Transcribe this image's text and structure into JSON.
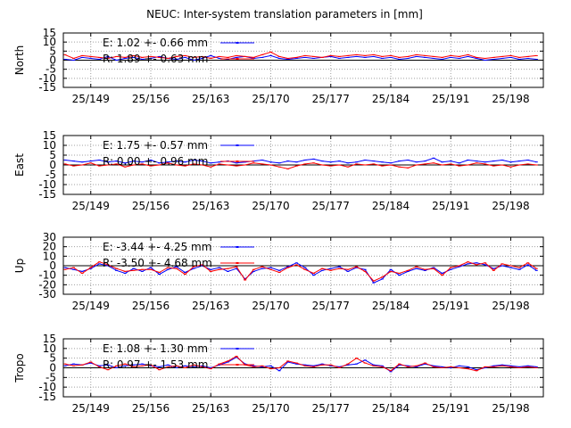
{
  "chart_data": {
    "type": "line",
    "title": "NEUC: Inter-system translation parameters in [mm]",
    "x_tick_labels": [
      "25/149",
      "25/156",
      "25/163",
      "25/170",
      "25/177",
      "25/184",
      "25/191",
      "25/198"
    ],
    "x_tick_days": [
      149,
      156,
      163,
      170,
      177,
      184,
      191,
      198
    ],
    "xlim": [
      145.8,
      201.8
    ],
    "colors": {
      "E": "#0000ff",
      "R": "#ff0000",
      "zero": "#000000",
      "grid": "#a0a0a0"
    },
    "panels": [
      {
        "ylabel": "North",
        "ylim": [
          -15,
          15
        ],
        "yticks": [
          -15,
          -10,
          -5,
          0,
          5,
          10,
          15
        ],
        "series": [
          {
            "name": "E",
            "legend": "E:   1.02 +- 0.66 mm",
            "x": [
              146,
              147,
              148,
              149,
              150,
              151,
              152,
              153,
              154,
              155,
              156,
              157,
              158,
              159,
              160,
              161,
              162,
              163,
              164,
              165,
              166,
              167,
              168,
              169,
              170,
              171,
              172,
              173,
              174,
              175,
              176,
              177,
              178,
              179,
              180,
              181,
              182,
              183,
              184,
              185,
              186,
              187,
              188,
              189,
              190,
              191,
              192,
              193,
              194,
              195,
              196,
              197,
              198,
              199,
              200,
              201
            ],
            "values": [
              0.5,
              0.0,
              1.5,
              1.0,
              0.5,
              2.0,
              0.0,
              1.0,
              1.5,
              0.5,
              1.0,
              2.0,
              1.0,
              0.5,
              1.5,
              0.0,
              1.0,
              2.5,
              1.0,
              0.5,
              1.5,
              2.0,
              1.0,
              1.5,
              2.5,
              1.0,
              0.5,
              1.0,
              1.5,
              1.0,
              1.5,
              2.0,
              1.0,
              1.5,
              2.0,
              1.5,
              2.0,
              1.0,
              1.5,
              0.5,
              1.0,
              2.0,
              1.5,
              1.0,
              0.5,
              1.5,
              1.0,
              2.0,
              1.0,
              0.0,
              0.5,
              1.0,
              1.5,
              0.5,
              1.0,
              0.5
            ]
          },
          {
            "name": "R",
            "legend": "R:   1.89 +- 0.63 mm",
            "x": [
              146,
              147,
              148,
              149,
              150,
              151,
              152,
              153,
              154,
              155,
              156,
              157,
              158,
              159,
              160,
              161,
              162,
              163,
              164,
              165,
              166,
              167,
              168,
              169,
              170,
              171,
              172,
              173,
              174,
              175,
              176,
              177,
              178,
              179,
              180,
              181,
              182,
              183,
              184,
              185,
              186,
              187,
              188,
              189,
              190,
              191,
              192,
              193,
              194,
              195,
              196,
              197,
              198,
              199,
              200,
              201
            ],
            "values": [
              3.0,
              1.0,
              2.5,
              2.0,
              1.5,
              1.0,
              2.0,
              1.5,
              2.5,
              1.5,
              2.0,
              1.5,
              1.0,
              2.0,
              2.5,
              1.5,
              2.0,
              1.0,
              2.0,
              1.5,
              2.5,
              2.0,
              1.5,
              3.0,
              4.5,
              2.0,
              1.0,
              1.5,
              2.5,
              2.0,
              1.5,
              2.5,
              2.0,
              2.5,
              3.0,
              2.5,
              3.0,
              2.0,
              2.5,
              1.5,
              2.0,
              3.0,
              2.5,
              2.0,
              1.5,
              2.5,
              2.0,
              3.0,
              1.5,
              1.0,
              1.5,
              2.0,
              2.5,
              1.5,
              2.0,
              2.5
            ]
          }
        ]
      },
      {
        "ylabel": "East",
        "ylim": [
          -15,
          15
        ],
        "yticks": [
          -15,
          -10,
          -5,
          0,
          5,
          10,
          15
        ],
        "series": [
          {
            "name": "E",
            "legend": "E:   1.75 +- 0.57 mm",
            "x": [
              146,
              147,
              148,
              149,
              150,
              151,
              152,
              153,
              154,
              155,
              156,
              157,
              158,
              159,
              160,
              161,
              162,
              163,
              164,
              165,
              166,
              167,
              168,
              169,
              170,
              171,
              172,
              173,
              174,
              175,
              176,
              177,
              178,
              179,
              180,
              181,
              182,
              183,
              184,
              185,
              186,
              187,
              188,
              189,
              190,
              191,
              192,
              193,
              194,
              195,
              196,
              197,
              198,
              199,
              200,
              201
            ],
            "values": [
              2.5,
              2.0,
              1.5,
              2.0,
              2.5,
              1.5,
              2.0,
              1.0,
              2.0,
              1.5,
              2.5,
              1.0,
              1.5,
              2.0,
              1.5,
              2.5,
              2.0,
              1.0,
              1.5,
              2.0,
              1.0,
              1.5,
              2.0,
              2.5,
              1.5,
              1.0,
              2.0,
              1.5,
              2.5,
              3.0,
              2.0,
              1.5,
              2.0,
              1.0,
              1.5,
              2.5,
              2.0,
              1.5,
              1.0,
              2.0,
              2.5,
              1.5,
              2.0,
              3.5,
              1.5,
              2.0,
              1.0,
              2.5,
              2.0,
              1.5,
              2.0,
              2.5,
              1.5,
              2.0,
              2.5,
              1.5
            ]
          },
          {
            "name": "R",
            "legend": "R:   0.00 +- 0.96 mm",
            "x": [
              146,
              147,
              148,
              149,
              150,
              151,
              152,
              153,
              154,
              155,
              156,
              157,
              158,
              159,
              160,
              161,
              162,
              163,
              164,
              165,
              166,
              167,
              168,
              169,
              170,
              171,
              172,
              173,
              174,
              175,
              176,
              177,
              178,
              179,
              180,
              181,
              182,
              183,
              184,
              185,
              186,
              187,
              188,
              189,
              190,
              191,
              192,
              193,
              194,
              195,
              196,
              197,
              198,
              199,
              200,
              201
            ],
            "values": [
              0.5,
              -0.5,
              0.0,
              1.0,
              -0.5,
              0.0,
              0.5,
              -1.0,
              0.0,
              0.5,
              -0.5,
              0.0,
              1.0,
              0.0,
              -0.5,
              0.5,
              0.0,
              -1.0,
              0.5,
              0.0,
              -0.5,
              0.0,
              1.0,
              0.5,
              0.0,
              -1.0,
              -2.0,
              -0.5,
              0.5,
              1.0,
              0.0,
              -0.5,
              0.0,
              -1.0,
              0.5,
              0.0,
              0.5,
              -0.5,
              0.0,
              -1.0,
              -1.5,
              0.0,
              0.5,
              1.0,
              0.0,
              0.5,
              -0.5,
              0.0,
              1.0,
              0.5,
              -0.5,
              0.0,
              -1.0,
              0.0,
              0.5,
              0.0
            ]
          }
        ]
      },
      {
        "ylabel": "Up",
        "ylim": [
          -30,
          30
        ],
        "yticks": [
          -30,
          -20,
          -10,
          0,
          10,
          20,
          30
        ],
        "series": [
          {
            "name": "E",
            "legend": "E:  -3.44 +- 4.25 mm",
            "x": [
              146,
              147,
              148,
              149,
              150,
              151,
              152,
              153,
              154,
              155,
              156,
              157,
              158,
              159,
              160,
              161,
              162,
              163,
              164,
              165,
              166,
              167,
              168,
              169,
              170,
              171,
              172,
              173,
              174,
              175,
              176,
              177,
              178,
              179,
              180,
              181,
              182,
              183,
              184,
              185,
              186,
              187,
              188,
              189,
              190,
              191,
              192,
              193,
              194,
              195,
              196,
              197,
              198,
              199,
              200,
              201
            ],
            "values": [
              -2,
              -4,
              -6,
              -3,
              2,
              0,
              -5,
              -8,
              -3,
              -6,
              -2,
              -9,
              -4,
              -1,
              -7,
              -3,
              0,
              -4,
              -2,
              -6,
              -3,
              -14,
              -6,
              -3,
              -2,
              -5,
              -1,
              3,
              -2,
              -10,
              -5,
              -3,
              -1,
              -6,
              -2,
              -4,
              -18,
              -14,
              -4,
              -10,
              -6,
              -3,
              -5,
              -2,
              -8,
              -4,
              -1,
              2,
              3,
              1,
              -3,
              0,
              -2,
              -4,
              1,
              -5
            ]
          },
          {
            "name": "R",
            "legend": "R:  -3.50 +- 4.68 mm",
            "x": [
              146,
              147,
              148,
              149,
              150,
              151,
              152,
              153,
              154,
              155,
              156,
              157,
              158,
              159,
              160,
              161,
              162,
              163,
              164,
              165,
              166,
              167,
              168,
              169,
              170,
              171,
              172,
              173,
              174,
              175,
              176,
              177,
              178,
              179,
              180,
              181,
              182,
              183,
              184,
              185,
              186,
              187,
              188,
              189,
              190,
              191,
              192,
              193,
              194,
              195,
              196,
              197,
              198,
              199,
              200,
              201
            ],
            "values": [
              -4,
              -2,
              -8,
              -2,
              4,
              1,
              -3,
              -6,
              -5,
              -4,
              -4,
              -7,
              -2,
              -3,
              -9,
              -1,
              1,
              -6,
              -4,
              -3,
              -1,
              -15,
              -4,
              -1,
              -4,
              -7,
              -2,
              1,
              -4,
              -8,
              -3,
              -5,
              -3,
              -4,
              -1,
              -6,
              -16,
              -12,
              -6,
              -8,
              -5,
              -1,
              -4,
              -3,
              -10,
              -2,
              0,
              4,
              1,
              3,
              -5,
              2,
              0,
              -2,
              3,
              -3
            ]
          }
        ]
      },
      {
        "ylabel": "Tropo",
        "ylim": [
          -15,
          15
        ],
        "yticks": [
          -15,
          -10,
          -5,
          0,
          5,
          10,
          15
        ],
        "series": [
          {
            "name": "E",
            "legend": "E:   1.08 +- 1.30 mm",
            "x": [
              146,
              147,
              148,
              149,
              150,
              151,
              152,
              153,
              154,
              155,
              156,
              157,
              158,
              159,
              160,
              161,
              162,
              163,
              164,
              165,
              166,
              167,
              168,
              169,
              170,
              171,
              172,
              173,
              174,
              175,
              176,
              177,
              178,
              179,
              180,
              181,
              182,
              183,
              184,
              185,
              186,
              187,
              188,
              189,
              190,
              191,
              192,
              193,
              194,
              195,
              196,
              197,
              198,
              199,
              200,
              201
            ],
            "values": [
              1.0,
              2.0,
              1.5,
              2.5,
              1.0,
              1.5,
              0.0,
              1.0,
              1.5,
              2.0,
              1.0,
              0.5,
              1.5,
              0.0,
              1.0,
              0.5,
              1.0,
              0.0,
              1.5,
              3.0,
              5.5,
              2.0,
              1.0,
              0.5,
              1.0,
              -1.5,
              3.0,
              2.0,
              1.5,
              1.0,
              2.0,
              1.0,
              0.5,
              1.5,
              2.0,
              4.0,
              1.5,
              1.0,
              -2.0,
              1.5,
              1.0,
              0.5,
              2.0,
              1.0,
              0.5,
              0.0,
              1.0,
              0.5,
              -1.0,
              0.0,
              1.0,
              1.5,
              1.0,
              0.5,
              1.0,
              0.5
            ]
          },
          {
            "name": "R",
            "legend": "R:   0.97 +- 1.53 mm",
            "x": [
              146,
              147,
              148,
              149,
              150,
              151,
              152,
              153,
              154,
              155,
              156,
              157,
              158,
              159,
              160,
              161,
              162,
              163,
              164,
              165,
              166,
              167,
              168,
              169,
              170,
              171,
              172,
              173,
              174,
              175,
              176,
              177,
              178,
              179,
              180,
              181,
              182,
              183,
              184,
              185,
              186,
              187,
              188,
              189,
              190,
              191,
              192,
              193,
              194,
              195,
              196,
              197,
              198,
              199,
              200,
              201
            ],
            "values": [
              2.0,
              1.0,
              1.5,
              3.0,
              0.5,
              -1.0,
              1.0,
              2.0,
              0.5,
              1.0,
              1.5,
              -1.0,
              0.5,
              1.0,
              0.0,
              1.5,
              0.5,
              -0.5,
              2.0,
              3.5,
              6.0,
              1.5,
              0.5,
              1.0,
              -0.5,
              0.0,
              3.5,
              2.5,
              1.0,
              0.5,
              1.5,
              1.5,
              0.0,
              2.0,
              5.0,
              2.5,
              1.0,
              0.5,
              -1.5,
              2.0,
              0.5,
              1.0,
              2.5,
              0.5,
              0.0,
              0.5,
              0.0,
              -0.5,
              -1.5,
              0.5,
              0.5,
              1.0,
              0.5,
              0.0,
              0.5,
              0.0
            ]
          }
        ]
      }
    ]
  }
}
